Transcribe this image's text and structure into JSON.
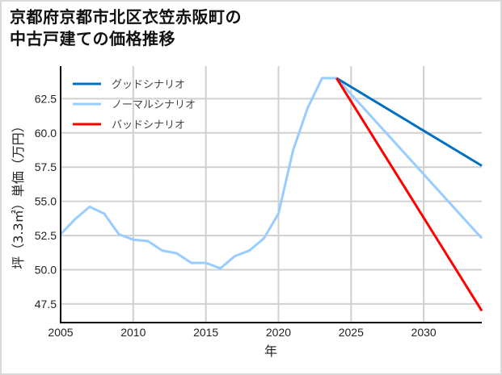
{
  "title": {
    "line1": "京都府京都市北区衣笠赤阪町の",
    "line2": "中古戸建ての価格推移"
  },
  "chart_data": {
    "type": "line",
    "title": "京都府京都市北区衣笠赤阪町の中古戸建ての価格推移",
    "xlabel": "年",
    "ylabel": "坪（3.3㎡）単価（万円）",
    "xlim": [
      2005,
      2034
    ],
    "ylim": [
      46.14,
      64.88
    ],
    "xticks": [
      2005,
      2010,
      2015,
      2020,
      2025,
      2030
    ],
    "xtick_labels": [
      "2005",
      "2010",
      "2015",
      "2020",
      "2025",
      "2030"
    ],
    "yticks": [
      47.5,
      50.0,
      52.5,
      55.0,
      57.5,
      60.0,
      62.5
    ],
    "ytick_labels": [
      "47.5",
      "50.0",
      "52.5",
      "55.0",
      "57.5",
      "60.0",
      "62.5"
    ],
    "grid": true,
    "legend_position": "upper left",
    "series": [
      {
        "name": "グッドシナリオ",
        "color": "#0070C0",
        "x": [
          2024,
          2034
        ],
        "values": [
          64.0,
          57.6
        ]
      },
      {
        "name": "ノーマルシナリオ",
        "color": "#99CCFF",
        "x": [
          2005,
          2006,
          2007,
          2008,
          2009,
          2010,
          2011,
          2012,
          2013,
          2014,
          2015,
          2016,
          2017,
          2018,
          2019,
          2020,
          2021,
          2022,
          2023,
          2024,
          2034
        ],
        "values": [
          52.6,
          53.7,
          54.6,
          54.1,
          52.6,
          52.2,
          52.1,
          51.4,
          51.2,
          50.5,
          50.5,
          50.1,
          51.0,
          51.4,
          52.3,
          54.1,
          58.7,
          61.8,
          64.0,
          64.0,
          52.3
        ]
      },
      {
        "name": "バッドシナリオ",
        "color": "#FF0000",
        "x": [
          2024,
          2034
        ],
        "values": [
          64.0,
          47.0
        ]
      }
    ]
  }
}
